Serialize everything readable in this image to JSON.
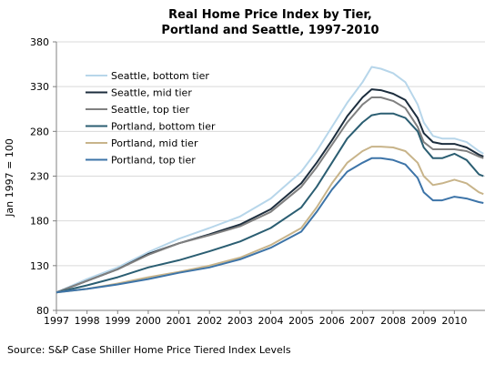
{
  "chart_data": {
    "type": "line",
    "title_lines": [
      "Real Home Price Index by Tier,",
      "Portland and Seattle, 1997-2010"
    ],
    "ylabel": "Jan 1997 = 100",
    "xlabel": "",
    "xlim": [
      1997,
      2011
    ],
    "ylim": [
      80,
      380
    ],
    "y_ticks": [
      80,
      130,
      180,
      230,
      280,
      330,
      380
    ],
    "x_ticks": [
      1997,
      1998,
      1999,
      2000,
      2001,
      2002,
      2003,
      2004,
      2005,
      2006,
      2007,
      2008,
      2009,
      2010
    ],
    "x_tick_labels": [
      "1997",
      "1998",
      "1999",
      "2000",
      "2001",
      "2002",
      "2003",
      "2004",
      "2005",
      "2006",
      "2007",
      "2008",
      "2009",
      "2010"
    ],
    "grid": true,
    "legend_position": "top-left",
    "series": [
      {
        "name": "Seattle, bottom tier",
        "color": "#b7d6ea",
        "x": [
          1997.0,
          1998.0,
          1999.0,
          2000.0,
          2001.0,
          2002.0,
          2003.0,
          2004.0,
          2005.0,
          2005.5,
          2006.0,
          2006.5,
          2007.0,
          2007.3,
          2007.6,
          2008.0,
          2008.4,
          2008.8,
          2009.0,
          2009.3,
          2009.6,
          2010.0,
          2010.4,
          2010.8,
          2010.95
        ],
        "y": [
          100,
          115,
          128,
          145,
          160,
          172,
          185,
          205,
          235,
          258,
          285,
          312,
          335,
          352,
          350,
          345,
          335,
          310,
          290,
          275,
          272,
          272,
          268,
          258,
          255
        ]
      },
      {
        "name": "Seattle, mid tier",
        "color": "#1c2d3d",
        "x": [
          1997.0,
          1998.0,
          1999.0,
          2000.0,
          2001.0,
          2002.0,
          2003.0,
          2004.0,
          2005.0,
          2005.5,
          2006.0,
          2006.5,
          2007.0,
          2007.3,
          2007.6,
          2008.0,
          2008.4,
          2008.8,
          2009.0,
          2009.3,
          2009.6,
          2010.0,
          2010.4,
          2010.8,
          2010.95
        ],
        "y": [
          100,
          113,
          126,
          143,
          155,
          165,
          176,
          193,
          222,
          245,
          270,
          297,
          318,
          327,
          326,
          322,
          315,
          295,
          278,
          268,
          266,
          266,
          262,
          254,
          252
        ]
      },
      {
        "name": "Seattle, top tier",
        "color": "#808080",
        "x": [
          1997.0,
          1998.0,
          1999.0,
          2000.0,
          2001.0,
          2002.0,
          2003.0,
          2004.0,
          2005.0,
          2005.5,
          2006.0,
          2006.5,
          2007.0,
          2007.3,
          2007.6,
          2008.0,
          2008.4,
          2008.8,
          2009.0,
          2009.3,
          2009.6,
          2010.0,
          2010.4,
          2010.8,
          2010.95
        ],
        "y": [
          100,
          113,
          126,
          142,
          155,
          164,
          174,
          190,
          218,
          240,
          265,
          290,
          310,
          318,
          318,
          314,
          306,
          285,
          268,
          260,
          260,
          260,
          258,
          252,
          250
        ]
      },
      {
        "name": "Portland, bottom tier",
        "color": "#2b5e72",
        "x": [
          1997.0,
          1998.0,
          1999.0,
          2000.0,
          2001.0,
          2002.0,
          2003.0,
          2004.0,
          2005.0,
          2005.5,
          2006.0,
          2006.5,
          2007.0,
          2007.3,
          2007.6,
          2008.0,
          2008.4,
          2008.8,
          2009.0,
          2009.3,
          2009.6,
          2010.0,
          2010.4,
          2010.8,
          2010.95
        ],
        "y": [
          100,
          108,
          117,
          128,
          136,
          146,
          157,
          172,
          195,
          218,
          245,
          272,
          290,
          298,
          300,
          300,
          295,
          280,
          262,
          250,
          250,
          255,
          248,
          232,
          230
        ]
      },
      {
        "name": "Portland, mid tier",
        "color": "#c8b48a",
        "x": [
          1997.0,
          1998.0,
          1999.0,
          2000.0,
          2001.0,
          2002.0,
          2003.0,
          2004.0,
          2005.0,
          2005.5,
          2006.0,
          2006.5,
          2007.0,
          2007.3,
          2007.6,
          2008.0,
          2008.4,
          2008.8,
          2009.0,
          2009.3,
          2009.6,
          2010.0,
          2010.4,
          2010.8,
          2010.95
        ],
        "y": [
          100,
          104,
          110,
          117,
          123,
          130,
          139,
          153,
          172,
          195,
          222,
          245,
          258,
          263,
          263,
          262,
          258,
          245,
          230,
          220,
          222,
          226,
          222,
          212,
          210
        ]
      },
      {
        "name": "Portland, top tier",
        "color": "#3d74a8",
        "x": [
          1997.0,
          1998.0,
          1999.0,
          2000.0,
          2001.0,
          2002.0,
          2003.0,
          2004.0,
          2005.0,
          2005.5,
          2006.0,
          2006.5,
          2007.0,
          2007.3,
          2007.6,
          2008.0,
          2008.4,
          2008.8,
          2009.0,
          2009.3,
          2009.6,
          2010.0,
          2010.4,
          2010.8,
          2010.95
        ],
        "y": [
          100,
          104,
          109,
          115,
          122,
          128,
          137,
          150,
          168,
          190,
          215,
          235,
          245,
          250,
          250,
          248,
          243,
          228,
          212,
          203,
          203,
          207,
          205,
          201,
          200
        ]
      }
    ]
  },
  "source_note": "Source: S&P Case Shiller Home Price Tiered Index Levels"
}
